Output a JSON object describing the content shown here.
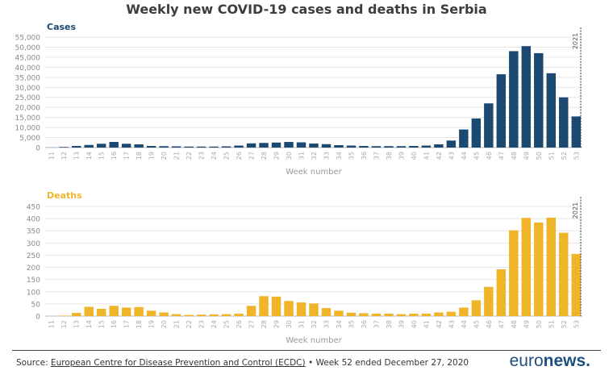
{
  "title": "Weekly new COVID-19 cases and deaths in Serbia",
  "footer": {
    "source_label": "Source:",
    "source_link": "European Centre for Disease Prevention and Control (ECDC)",
    "note": "• Week 52 ended December 27, 2020"
  },
  "logo": {
    "part1": "euro",
    "part2": "news."
  },
  "chart_data": [
    {
      "type": "bar",
      "title": "Cases",
      "xlabel": "Week number",
      "color": "#1b4972",
      "ylim": [
        0,
        55000
      ],
      "yticks": [
        0,
        5000,
        10000,
        15000,
        20000,
        25000,
        30000,
        35000,
        40000,
        45000,
        50000,
        55000
      ],
      "ytick_labels": [
        "0",
        "5,000",
        "10,000",
        "15,000",
        "20,000",
        "25,000",
        "30,000",
        "35,000",
        "40,000",
        "45,000",
        "50,000",
        "55,000"
      ],
      "marker_label": "2021",
      "categories": [
        "11",
        "12",
        "13",
        "14",
        "15",
        "16",
        "17",
        "18",
        "19",
        "20",
        "21",
        "22",
        "23",
        "24",
        "25",
        "26",
        "27",
        "28",
        "29",
        "30",
        "31",
        "32",
        "33",
        "34",
        "35",
        "36",
        "37",
        "38",
        "39",
        "40",
        "41",
        "42",
        "43",
        "44",
        "45",
        "46",
        "47",
        "48",
        "49",
        "50",
        "51",
        "52",
        "53"
      ],
      "values": [
        50,
        300,
        800,
        1300,
        1900,
        2800,
        1900,
        1600,
        800,
        700,
        600,
        500,
        500,
        500,
        600,
        1000,
        2100,
        2300,
        2500,
        2800,
        2600,
        2000,
        1700,
        1200,
        1000,
        800,
        700,
        700,
        700,
        800,
        1000,
        1600,
        3500,
        9000,
        14500,
        22000,
        36500,
        48000,
        50500,
        47000,
        37000,
        25000,
        15500
      ]
    },
    {
      "type": "bar",
      "title": "Deaths",
      "xlabel": "Week number",
      "color": "#f0b429",
      "ylim": [
        0,
        450
      ],
      "yticks": [
        0,
        50,
        100,
        150,
        200,
        250,
        300,
        350,
        400,
        450
      ],
      "ytick_labels": [
        "0",
        "50",
        "100",
        "150",
        "200",
        "250",
        "300",
        "350",
        "400",
        "450"
      ],
      "marker_label": "2021",
      "categories": [
        "11",
        "12",
        "13",
        "14",
        "15",
        "16",
        "17",
        "18",
        "19",
        "20",
        "21",
        "22",
        "23",
        "24",
        "25",
        "26",
        "27",
        "28",
        "29",
        "30",
        "31",
        "32",
        "33",
        "34",
        "35",
        "36",
        "37",
        "38",
        "39",
        "40",
        "41",
        "42",
        "43",
        "44",
        "45",
        "46",
        "47",
        "48",
        "49",
        "50",
        "51",
        "52",
        "53"
      ],
      "values": [
        0,
        2,
        13,
        38,
        30,
        42,
        35,
        37,
        22,
        15,
        8,
        5,
        6,
        7,
        8,
        10,
        42,
        82,
        80,
        62,
        56,
        52,
        33,
        22,
        14,
        12,
        10,
        10,
        8,
        10,
        10,
        15,
        18,
        35,
        65,
        120,
        192,
        352,
        403,
        384,
        404,
        342,
        255
      ]
    }
  ]
}
